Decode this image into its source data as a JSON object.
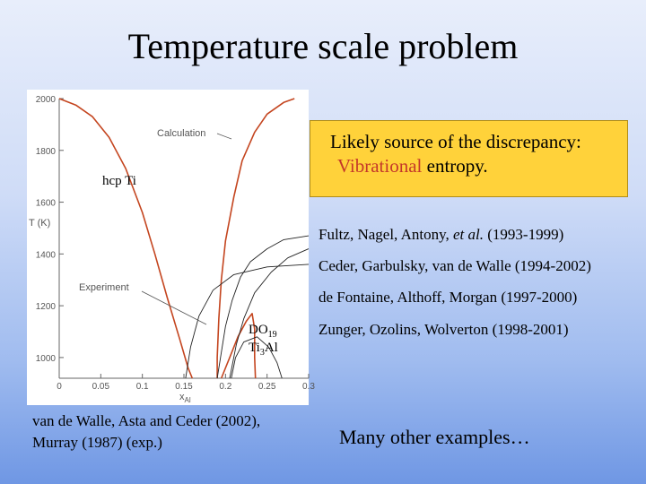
{
  "title": "Temperature scale problem",
  "callout": {
    "line1": "Likely source of the discrepancy:",
    "line2_highlight": "Vibrational",
    "line2_rest": " entropy.",
    "background": "#ffd23a",
    "highlight_color": "#c4382a"
  },
  "references": [
    {
      "authors": "Fultz, Nagel, Antony, ",
      "etal": "et al.",
      "years": " (1993-1999)"
    },
    {
      "authors": "Ceder, Garbulsky, van de Walle",
      "etal": "",
      "years": " (1994-2002)"
    },
    {
      "authors": "de Fontaine, Althoff, Morgan",
      "etal": "",
      "years": " (1997-2000)"
    },
    {
      "authors": "Zunger, Ozolins, Wolverton",
      "etal": "",
      "years": " (1998-2001)"
    }
  ],
  "source_caption": {
    "line1": "van de Walle, Asta and Ceder (2002),",
    "line2": "Murray (1987) (exp.)"
  },
  "more_examples": "Many other examples…",
  "chart_data": {
    "type": "line",
    "xlabel": "x",
    "xlabel_sub": "Al",
    "ylabel": "T (K)",
    "xlim": [
      0,
      0.3
    ],
    "ylim": [
      920,
      2000
    ],
    "x_ticks": [
      "0",
      "0.05",
      "0.1",
      "0.15",
      "0.2",
      "0.25",
      "0.3"
    ],
    "y_ticks": [
      "1000",
      "1200",
      "1400",
      "1600",
      "1800",
      "2000"
    ],
    "grid": false,
    "annotations": {
      "calculation": "Calculation",
      "experiment": "Experiment",
      "phase_hcp": "hcp Ti",
      "phase_do19_main": "DO",
      "phase_do19_sub": "19",
      "phase_ti3al_a": "Ti",
      "phase_ti3al_sub": "3",
      "phase_ti3al_b": "Al"
    },
    "series": [
      {
        "color": "#c4451f",
        "values": [
          [
            0.0,
            2000
          ],
          [
            0.02,
            1975
          ],
          [
            0.04,
            1930
          ],
          [
            0.06,
            1850
          ],
          [
            0.08,
            1730
          ],
          [
            0.1,
            1560
          ],
          [
            0.115,
            1400
          ],
          [
            0.13,
            1230
          ],
          [
            0.145,
            1070
          ],
          [
            0.155,
            960
          ],
          [
            0.16,
            920
          ]
        ]
      },
      {
        "color": "#c4451f",
        "values": [
          [
            0.283,
            2000
          ],
          [
            0.27,
            1985
          ],
          [
            0.25,
            1940
          ],
          [
            0.235,
            1870
          ],
          [
            0.22,
            1760
          ],
          [
            0.21,
            1620
          ],
          [
            0.2,
            1450
          ],
          [
            0.195,
            1300
          ],
          [
            0.192,
            1150
          ],
          [
            0.19,
            1000
          ],
          [
            0.19,
            920
          ]
        ]
      },
      {
        "color": "#c4451f",
        "values": [
          [
            0.195,
            920
          ],
          [
            0.205,
            1000
          ],
          [
            0.215,
            1080
          ],
          [
            0.225,
            1140
          ],
          [
            0.232,
            1170
          ],
          [
            0.235,
            1110
          ],
          [
            0.235,
            1000
          ],
          [
            0.236,
            920
          ]
        ]
      },
      {
        "color": "#222222",
        "values": [
          [
            0.3,
            1420
          ],
          [
            0.275,
            1385
          ],
          [
            0.255,
            1330
          ],
          [
            0.235,
            1250
          ],
          [
            0.222,
            1150
          ],
          [
            0.213,
            1050
          ],
          [
            0.205,
            920
          ]
        ]
      },
      {
        "color": "#222222",
        "values": [
          [
            0.3,
            1470
          ],
          [
            0.27,
            1455
          ],
          [
            0.25,
            1420
          ],
          [
            0.23,
            1370
          ],
          [
            0.218,
            1310
          ],
          [
            0.208,
            1220
          ],
          [
            0.2,
            1120
          ],
          [
            0.195,
            1020
          ],
          [
            0.19,
            920
          ]
        ]
      },
      {
        "color": "#222222",
        "values": [
          [
            0.152,
            920
          ],
          [
            0.158,
            1040
          ],
          [
            0.168,
            1160
          ],
          [
            0.185,
            1260
          ],
          [
            0.21,
            1320
          ],
          [
            0.25,
            1350
          ],
          [
            0.3,
            1360
          ]
        ]
      },
      {
        "color": "#222222",
        "values": [
          [
            0.207,
            920
          ],
          [
            0.212,
            1000
          ],
          [
            0.222,
            1060
          ],
          [
            0.238,
            1080
          ],
          [
            0.252,
            1040
          ],
          [
            0.262,
            980
          ],
          [
            0.268,
            920
          ]
        ]
      }
    ]
  }
}
